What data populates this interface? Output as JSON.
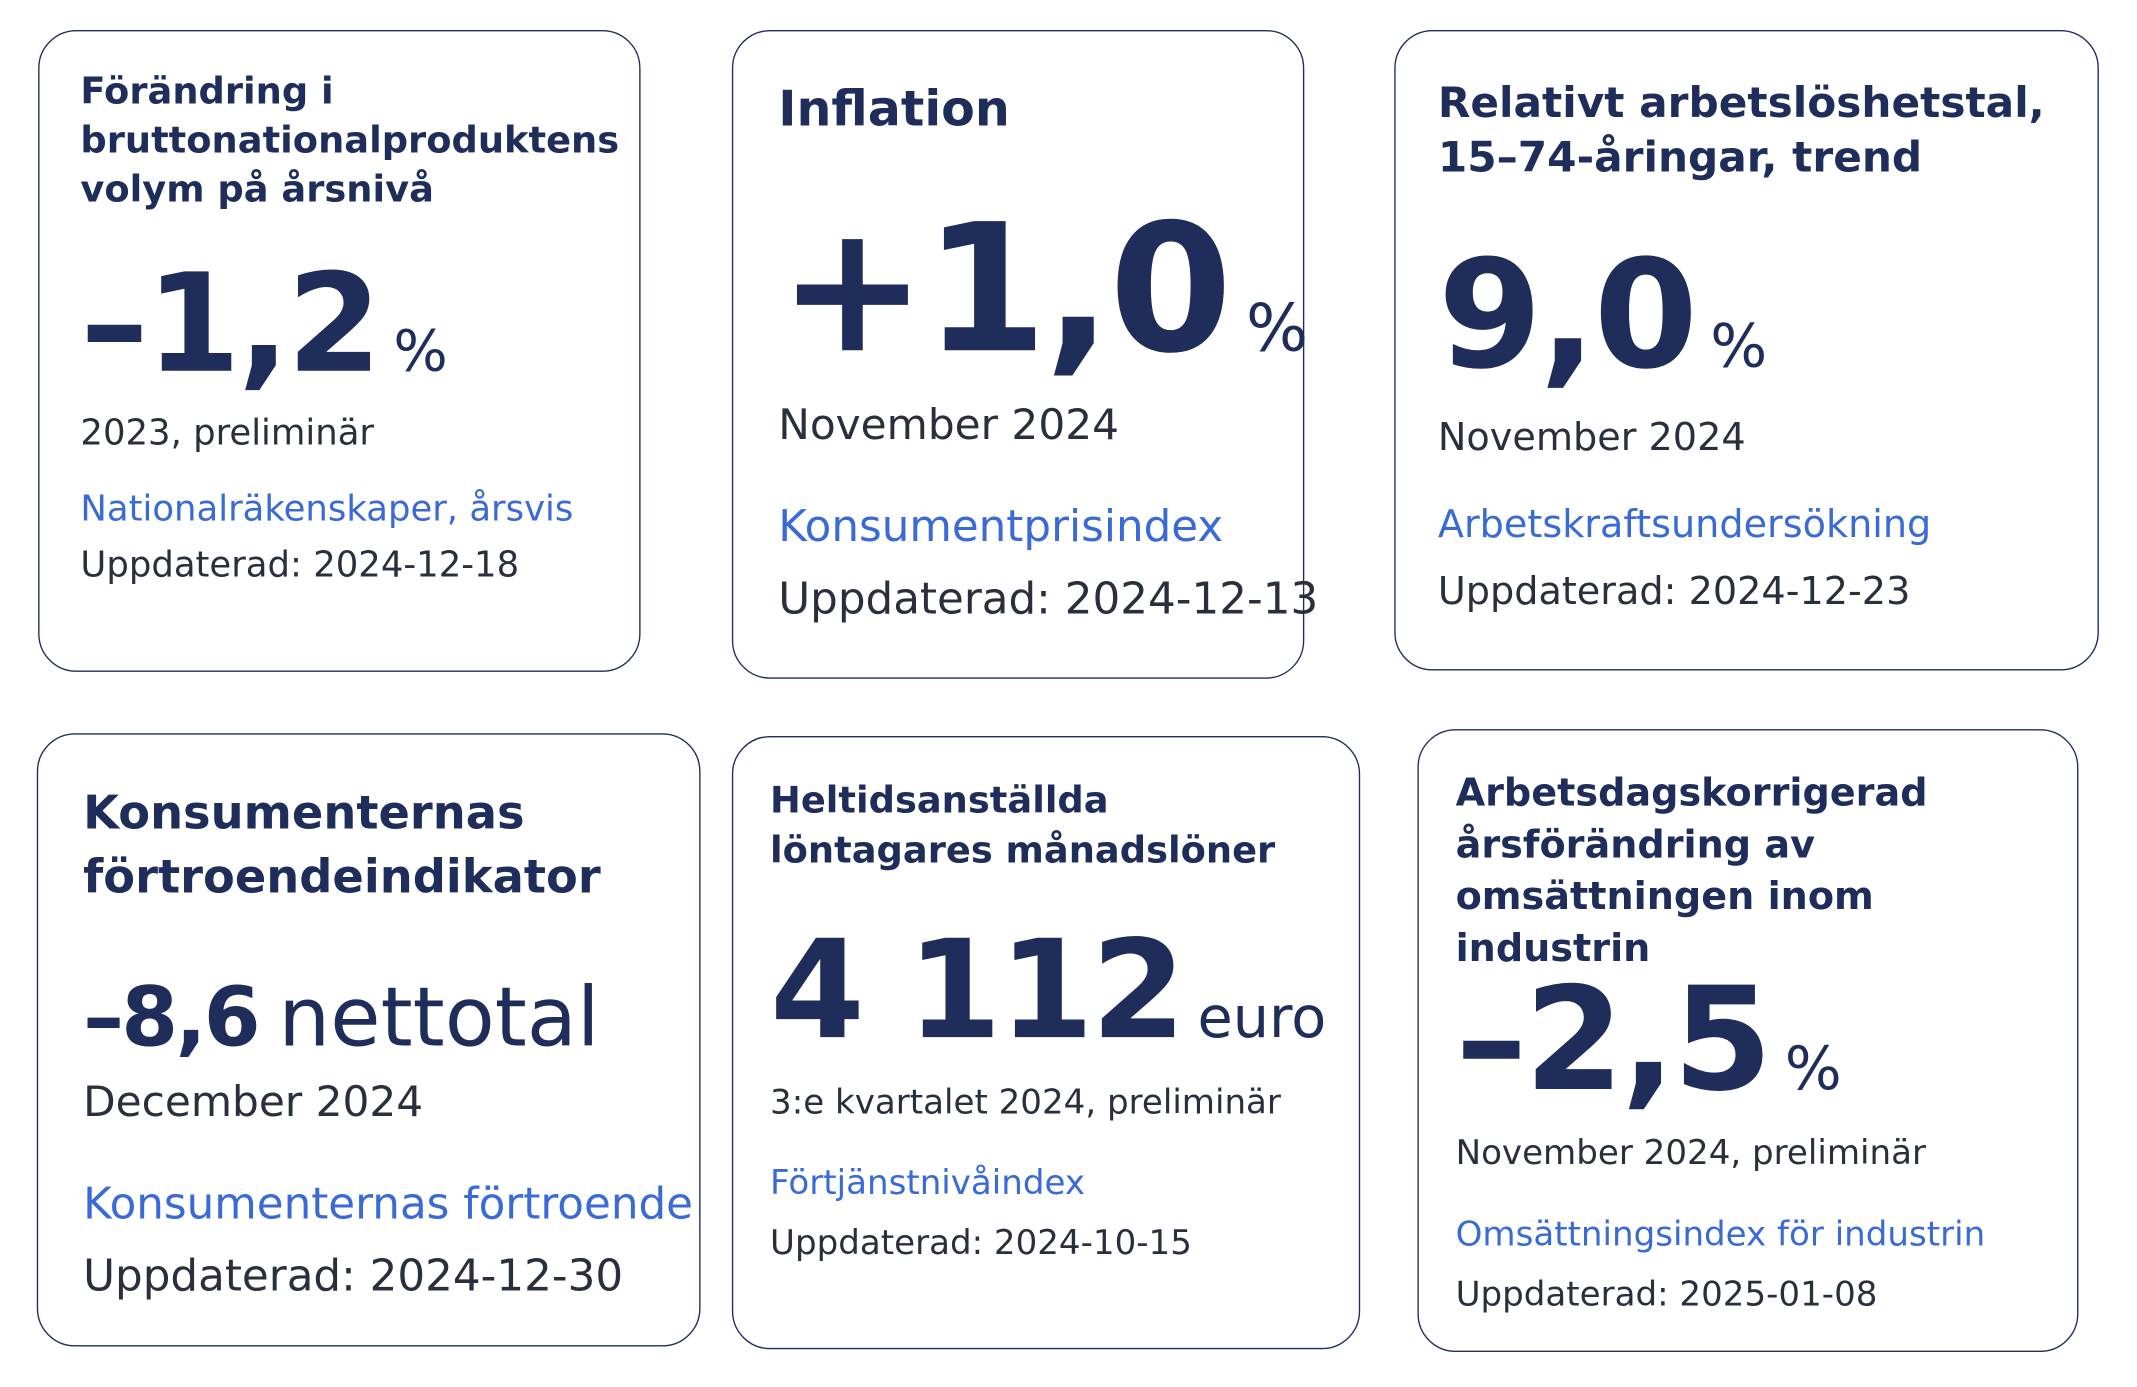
{
  "cards": [
    {
      "title": "Förändring i bruttonationalproduktens volym på årsnivå",
      "value": "–1,2",
      "unit": "%",
      "period": "2023, preliminär",
      "source": "Nationalräkenskaper, årsvis",
      "updated": "Uppdaterad: 2024-12-18"
    },
    {
      "title": "Inflation",
      "value": "+1,0",
      "unit": "%",
      "period": "November 2024",
      "source": "Konsumentprisindex",
      "updated": "Uppdaterad: 2024-12-13"
    },
    {
      "title": "Relativt arbetslöshetstal, 15–74-åringar, trend",
      "value": "9,0",
      "unit": "%",
      "period": "November 2024",
      "source": "Arbetskraftsundersökning",
      "updated": "Uppdaterad: 2024-12-23"
    },
    {
      "title": "Konsumenternas förtroendeindikator",
      "value": "–8,6",
      "unit": "nettotal",
      "period": "December 2024",
      "source": "Konsumenternas förtroende",
      "updated": "Uppdaterad: 2024-12-30"
    },
    {
      "title": "Heltidsanställda löntagares månadslöner",
      "value": "4 112",
      "unit": "euro",
      "period": "3:e kvartalet 2024, preliminär",
      "source": "Förtjänstnivåindex",
      "updated": "Uppdaterad: 2024-10-15"
    },
    {
      "title": "Arbetsdagskorrigerad årsförändring av omsättningen inom industrin",
      "value": "–2,5",
      "unit": "%",
      "period": "November 2024, preliminär",
      "source": "Omsättningsindex för industrin",
      "updated": "Uppdaterad: 2025-01-08"
    }
  ]
}
